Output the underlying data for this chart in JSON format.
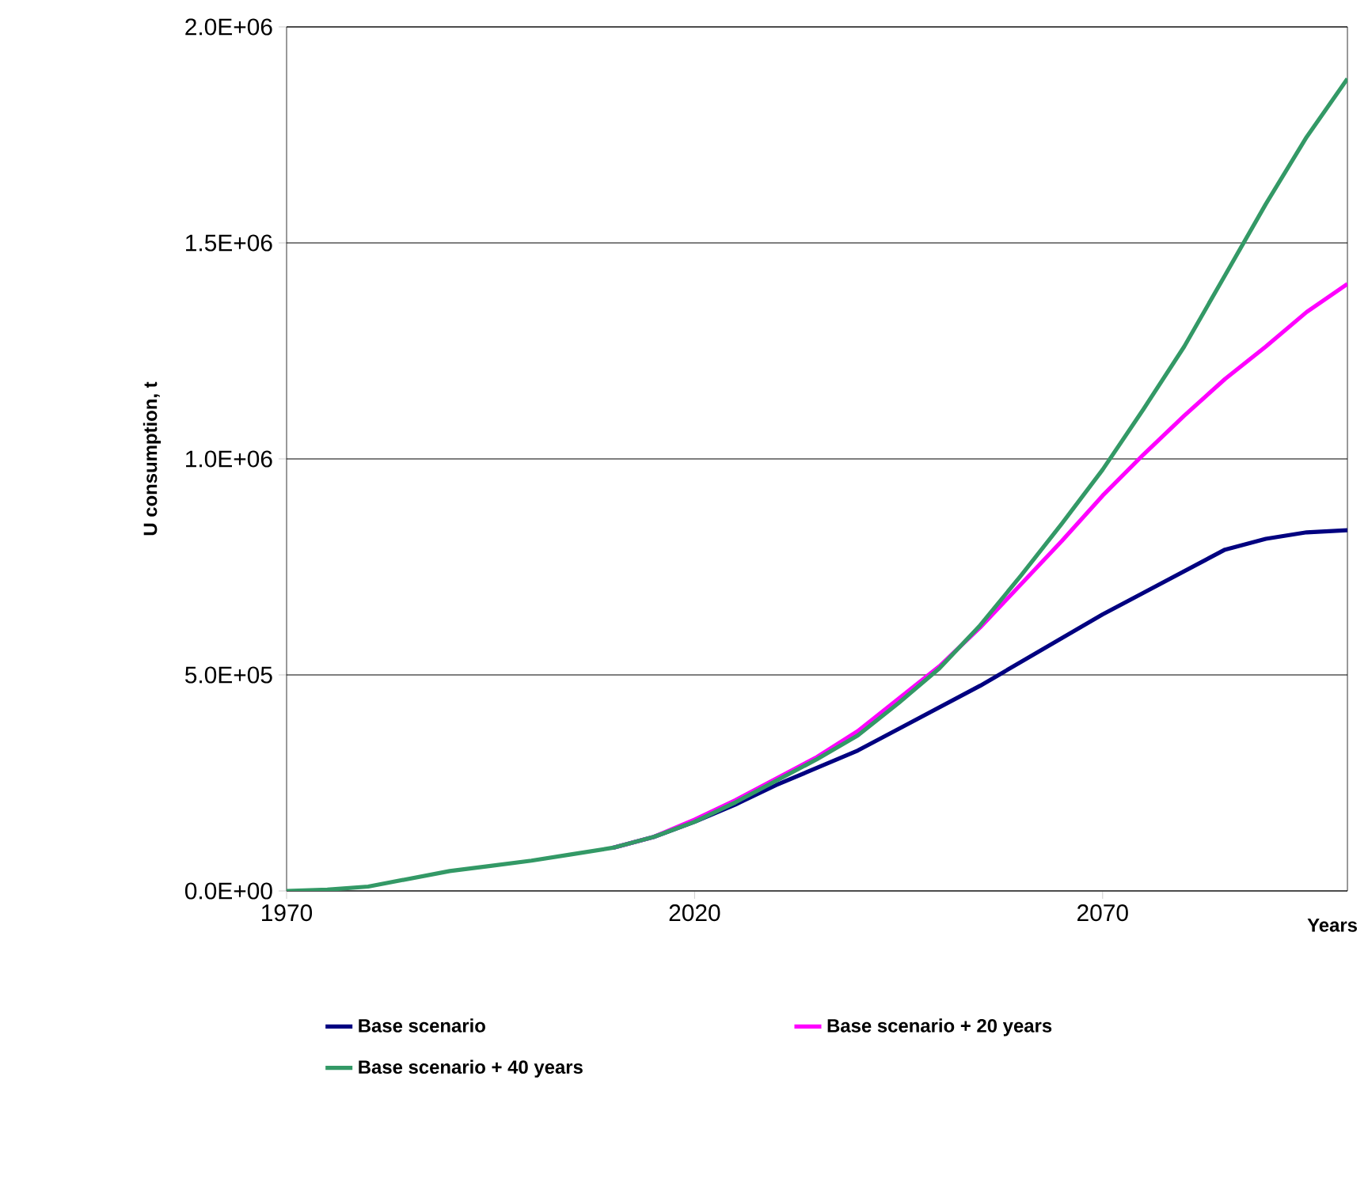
{
  "chart_data": {
    "type": "line",
    "xlabel": "Years",
    "ylabel": "U consumption, t",
    "x": [
      1970,
      1975,
      1980,
      1985,
      1990,
      1995,
      2000,
      2005,
      2010,
      2015,
      2020,
      2025,
      2030,
      2035,
      2040,
      2045,
      2050,
      2055,
      2060,
      2065,
      2070,
      2075,
      2080,
      2085,
      2090,
      2095,
      2100
    ],
    "series": [
      {
        "name": "Base scenario",
        "color": "#000080",
        "values": [
          null,
          null,
          null,
          null,
          null,
          null,
          null,
          null,
          100000,
          125000,
          160000,
          200000,
          245000,
          285000,
          325000,
          375000,
          425000,
          475000,
          530000,
          585000,
          640000,
          690000,
          740000,
          790000,
          815000,
          830000,
          835000
        ]
      },
      {
        "name": "Base scenario + 20 years",
        "color": "#ff00ff",
        "values": [
          null,
          null,
          null,
          null,
          null,
          null,
          null,
          null,
          100000,
          125000,
          165000,
          210000,
          260000,
          310000,
          370000,
          445000,
          520000,
          610000,
          710000,
          810000,
          915000,
          1010000,
          1100000,
          1185000,
          1260000,
          1340000,
          1405000
        ]
      },
      {
        "name": "Base scenario + 40 years",
        "color": "#339966",
        "values": [
          0,
          3000,
          10000,
          28000,
          46000,
          58000,
          70000,
          85000,
          100000,
          125000,
          160000,
          205000,
          255000,
          305000,
          360000,
          435000,
          515000,
          615000,
          730000,
          850000,
          975000,
          1115000,
          1260000,
          1425000,
          1590000,
          1745000,
          1880000
        ]
      }
    ],
    "xlim": [
      1970,
      2100
    ],
    "xticks": [
      1970,
      2020,
      2070
    ],
    "ylim": [
      0,
      2000000
    ],
    "yticks": [
      {
        "value": 0,
        "label": "0.0E+00"
      },
      {
        "value": 500000,
        "label": "5.0E+05"
      },
      {
        "value": 1000000,
        "label": "1.0E+06"
      },
      {
        "value": 1500000,
        "label": "1.5E+06"
      },
      {
        "value": 2000000,
        "label": "2.0E+06"
      }
    ],
    "grid": "y",
    "legend": "bottom",
    "marker": "none",
    "line_style": "solid"
  }
}
